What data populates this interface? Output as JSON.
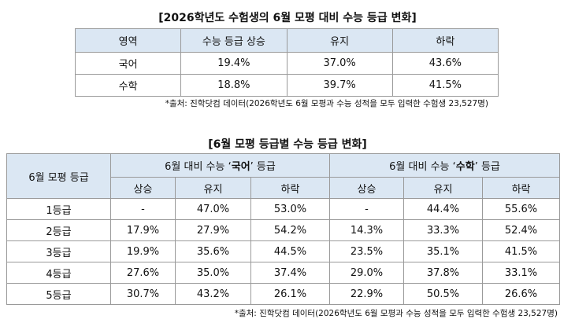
{
  "table1": {
    "title": "[2026학년도 수험생의 6월 모평 대비 수능 등급 변화]",
    "header": [
      "영역",
      "수능 등급 상승",
      "유지",
      "하락"
    ],
    "rows": [
      [
        "국어",
        "19.4%",
        "37.0%",
        "43.6%"
      ],
      [
        "수학",
        "18.8%",
        "39.7%",
        "41.5%"
      ]
    ],
    "footnote": "*출처: 진학닷컴 데이터(2026학년도 6월 모평과 수능 성적을 모두 입력한 수험생 23,527명)"
  },
  "table2": {
    "title": "[6월 모평 등급별 수능 등급 변화]",
    "row_header": "6월 모평 등급",
    "groups": [
      {
        "prefix": "6월 대비 수능 ‘",
        "subject": "국어",
        "suffix": "’ 등급"
      },
      {
        "prefix": "6월 대비 수능 ‘",
        "subject": "수학",
        "suffix": "’ 등급"
      }
    ],
    "subheader": [
      "상승",
      "유지",
      "하락",
      "상승",
      "유지",
      "하락"
    ],
    "rows": [
      [
        "1등급",
        "-",
        "47.0%",
        "53.0%",
        "-",
        "44.4%",
        "55.6%"
      ],
      [
        "2등급",
        "17.9%",
        "27.9%",
        "54.2%",
        "14.3%",
        "33.3%",
        "52.4%"
      ],
      [
        "3등급",
        "19.9%",
        "35.6%",
        "44.5%",
        "23.5%",
        "35.1%",
        "41.5%"
      ],
      [
        "4등급",
        "27.6%",
        "35.0%",
        "37.4%",
        "29.0%",
        "37.8%",
        "33.1%"
      ],
      [
        "5등급",
        "30.7%",
        "43.2%",
        "26.1%",
        "22.9%",
        "50.5%",
        "26.6%"
      ]
    ],
    "footnote": "*출처: 진학닷컴 데이터(2026학년도 6월 모평과 수능 성적을 모두 입력한 수험생 23,527명)"
  }
}
